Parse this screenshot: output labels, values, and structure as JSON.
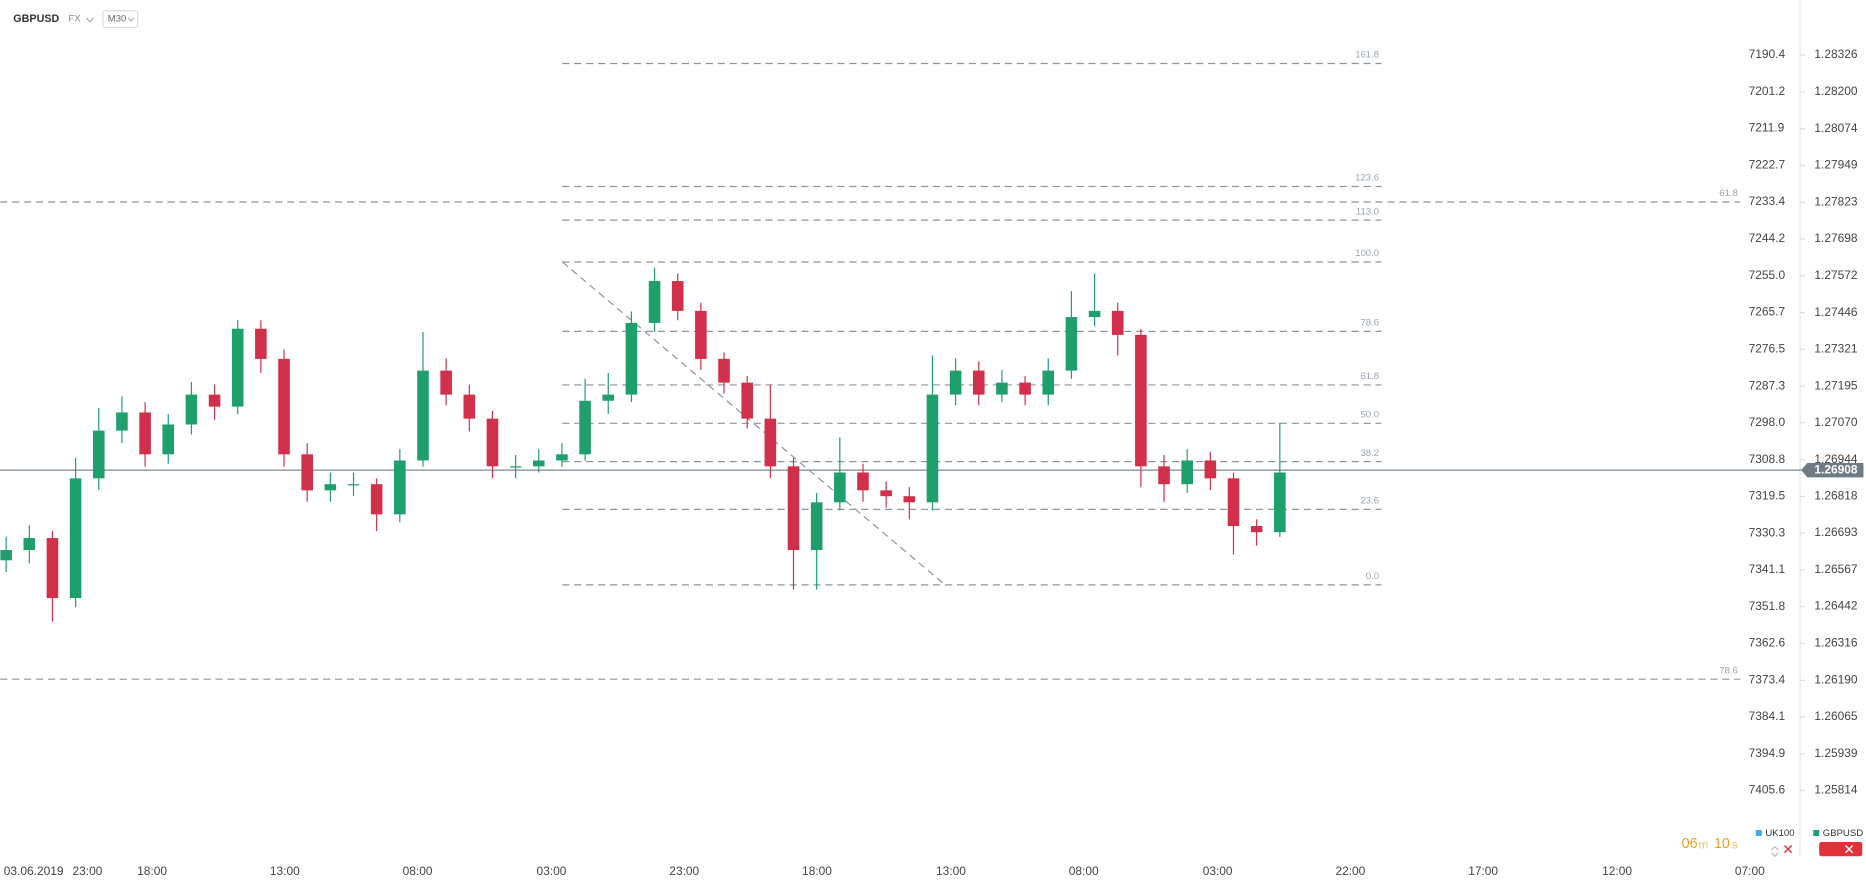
{
  "chart_data": {
    "type": "candlestick",
    "symbol": "GBPUSD",
    "market": "FX",
    "interval": "M30",
    "series": [
      {
        "name": "GBPUSD",
        "color": "#1e9f6b",
        "down_color": "#d0304a",
        "open": [
          1.266,
          1.26635,
          1.26676,
          1.26471,
          1.2688,
          1.27043,
          1.27105,
          1.26962,
          1.27064,
          1.27166,
          1.27125,
          1.27391,
          1.27288,
          1.26962,
          1.26839,
          1.2686,
          1.2686,
          1.26757,
          1.26941,
          1.27248,
          1.27166,
          1.27084,
          1.26921,
          1.26921,
          1.26941,
          1.26962,
          1.27145,
          1.27166,
          1.27411,
          1.27554,
          1.27452,
          1.27288,
          1.27207,
          1.27084,
          1.26921,
          1.26635,
          1.26798,
          1.269,
          1.26839,
          1.26819,
          1.26798,
          1.27166,
          1.27248,
          1.27166,
          1.27207,
          1.27166,
          1.27248,
          1.27431,
          1.27452,
          1.2737,
          1.26921,
          1.2686,
          1.26941,
          1.2688,
          1.26717,
          1.26696
        ],
        "high": [
          1.2668,
          1.2672,
          1.267,
          1.2695,
          1.2712,
          1.2716,
          1.2714,
          1.271,
          1.2721,
          1.272,
          1.2742,
          1.2742,
          1.2732,
          1.27,
          1.269,
          1.269,
          1.2688,
          1.2698,
          1.2738,
          1.2729,
          1.272,
          1.2711,
          1.2696,
          1.2698,
          1.27,
          1.2722,
          1.2724,
          1.2745,
          1.276,
          1.2758,
          1.2748,
          1.2731,
          1.2723,
          1.272,
          1.2695,
          1.2683,
          1.2702,
          1.2693,
          1.2687,
          1.2685,
          1.273,
          1.2729,
          1.2728,
          1.2725,
          1.2723,
          1.2729,
          1.2752,
          1.2758,
          1.2748,
          1.2739,
          1.2696,
          1.2698,
          1.2697,
          1.269,
          1.2674,
          1.2707
        ],
        "low": [
          1.2656,
          1.2659,
          1.2639,
          1.2644,
          1.2684,
          1.27,
          1.2692,
          1.2693,
          1.2703,
          1.2708,
          1.271,
          1.2724,
          1.2692,
          1.268,
          1.268,
          1.2682,
          1.267,
          1.2673,
          1.2692,
          1.2713,
          1.2704,
          1.2688,
          1.2688,
          1.269,
          1.2692,
          1.2694,
          1.271,
          1.2714,
          1.2738,
          1.2742,
          1.2725,
          1.2717,
          1.2705,
          1.2688,
          1.265,
          1.265,
          1.2677,
          1.268,
          1.2678,
          1.2674,
          1.2677,
          1.2713,
          1.2713,
          1.2714,
          1.2713,
          1.2713,
          1.2722,
          1.274,
          1.273,
          1.2685,
          1.268,
          1.2683,
          1.2684,
          1.2662,
          1.2665,
          1.2668
        ],
        "close": [
          1.26635,
          1.26676,
          1.26471,
          1.2688,
          1.27043,
          1.27105,
          1.26962,
          1.27064,
          1.27166,
          1.27125,
          1.27391,
          1.27288,
          1.26962,
          1.26839,
          1.2686,
          1.2686,
          1.26757,
          1.26941,
          1.27248,
          1.27166,
          1.27084,
          1.26921,
          1.26921,
          1.26941,
          1.26962,
          1.27145,
          1.27166,
          1.27411,
          1.27554,
          1.27452,
          1.27288,
          1.27207,
          1.27084,
          1.26921,
          1.26635,
          1.26798,
          1.269,
          1.26839,
          1.26819,
          1.26798,
          1.27166,
          1.27248,
          1.27166,
          1.27207,
          1.27166,
          1.27248,
          1.27431,
          1.27452,
          1.2737,
          1.26921,
          1.2686,
          1.26941,
          1.2688,
          1.26717,
          1.26696,
          1.269
        ]
      }
    ],
    "compare_series": {
      "name": "UK100",
      "color": "#3fa9f5"
    },
    "ylim": [
      1.25593,
      1.28514
    ],
    "yticks": [
      {
        "value": 1.28326,
        "label": "1.28326"
      },
      {
        "value": 1.282,
        "label": "1.28200"
      },
      {
        "value": 1.28074,
        "label": "1.28074"
      },
      {
        "value": 1.27949,
        "label": "1.27949"
      },
      {
        "value": 1.27823,
        "label": "1.27823"
      },
      {
        "value": 1.27698,
        "label": "1.27698"
      },
      {
        "value": 1.27572,
        "label": "1.27572"
      },
      {
        "value": 1.27446,
        "label": "1.27446"
      },
      {
        "value": 1.27321,
        "label": "1.27321"
      },
      {
        "value": 1.27195,
        "label": "1.27195"
      },
      {
        "value": 1.2707,
        "label": "1.27070"
      },
      {
        "value": 1.26944,
        "label": "1.26944"
      },
      {
        "value": 1.26818,
        "label": "1.26818"
      },
      {
        "value": 1.26693,
        "label": "1.26693"
      },
      {
        "value": 1.26567,
        "label": "1.26567"
      },
      {
        "value": 1.26442,
        "label": "1.26442"
      },
      {
        "value": 1.26316,
        "label": "1.26316"
      },
      {
        "value": 1.2619,
        "label": "1.26190"
      },
      {
        "value": 1.26065,
        "label": "1.26065"
      },
      {
        "value": 1.25939,
        "label": "1.25939"
      },
      {
        "value": 1.25814,
        "label": "1.25814"
      }
    ],
    "y2lim": [
      7424.5,
      7174.3
    ],
    "y2ticks": [
      {
        "value": 7190.4,
        "label": "7190.4"
      },
      {
        "value": 7201.2,
        "label": "7201.2"
      },
      {
        "value": 7211.9,
        "label": "7211.9"
      },
      {
        "value": 7222.7,
        "label": "7222.7"
      },
      {
        "value": 7233.4,
        "label": "7233.4"
      },
      {
        "value": 7244.2,
        "label": "7244.2"
      },
      {
        "value": 7255.0,
        "label": "7255.0"
      },
      {
        "value": 7265.7,
        "label": "7265.7"
      },
      {
        "value": 7276.5,
        "label": "7276.5"
      },
      {
        "value": 7287.3,
        "label": "7287.3"
      },
      {
        "value": 7298.0,
        "label": "7298.0"
      },
      {
        "value": 7308.8,
        "label": "7308.8"
      },
      {
        "value": 7319.5,
        "label": "7319.5"
      },
      {
        "value": 7330.3,
        "label": "7330.3"
      },
      {
        "value": 7341.1,
        "label": "7341.1"
      },
      {
        "value": 7351.8,
        "label": "7351.8"
      },
      {
        "value": 7362.6,
        "label": "7362.6"
      },
      {
        "value": 7373.4,
        "label": "7373.4"
      },
      {
        "value": 7384.1,
        "label": "7384.1"
      },
      {
        "value": 7394.9,
        "label": "7394.9"
      },
      {
        "value": 7405.6,
        "label": "7405.6"
      }
    ],
    "x_labels": [
      "03.06.2019",
      "23:00",
      "18:00",
      "13:00",
      "08:00",
      "03:00",
      "23:00",
      "18:00",
      "13:00",
      "08:00",
      "03:00",
      "22:00",
      "17:00",
      "12:00",
      "07:00"
    ],
    "current_price": {
      "value": 1.26908,
      "label": "1.26908"
    },
    "fib_levels": [
      {
        "label": "161.8",
        "price": 1.28297
      },
      {
        "label": "123.6",
        "price": 1.27877
      },
      {
        "label": "113.0",
        "price": 1.27762
      },
      {
        "label": "100.0",
        "price": 1.27619
      },
      {
        "label": "78.6",
        "price": 1.27382
      },
      {
        "label": "61.8",
        "price": 1.27199
      },
      {
        "label": "50.0",
        "price": 1.27068
      },
      {
        "label": "38.2",
        "price": 1.26937
      },
      {
        "label": "23.6",
        "price": 1.26774
      },
      {
        "label": "0.0",
        "price": 1.26516
      }
    ],
    "fib_wide_levels": [
      {
        "label": "61.8",
        "price": 1.27824
      },
      {
        "label": "78.6",
        "price": 1.26194
      }
    ],
    "countdown": {
      "minutes": "06",
      "minutes_unit": "m",
      "seconds": "10",
      "seconds_unit": "s"
    }
  }
}
